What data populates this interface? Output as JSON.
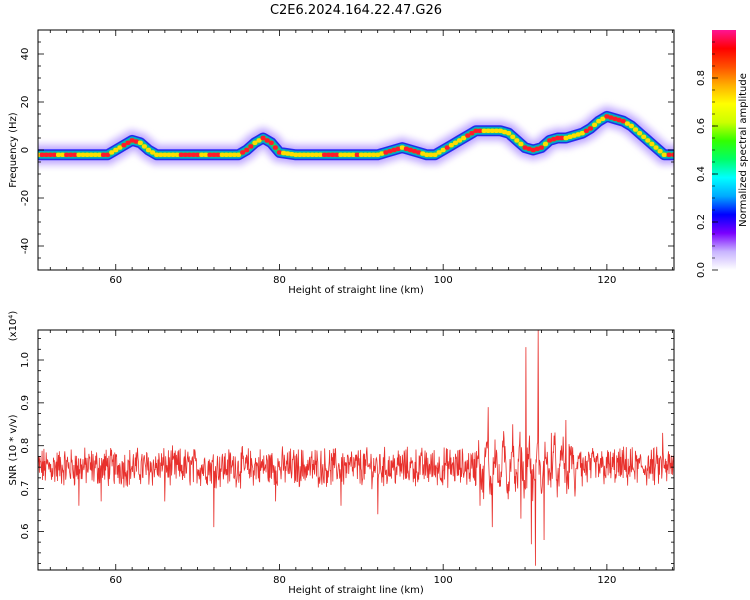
{
  "title": "C2E6.2024.164.22.47.G26",
  "chart_data": [
    {
      "type": "heatmap",
      "xlabel": "Height of straight line (km)",
      "ylabel": "Frequency (Hz)",
      "xlim": [
        50.5,
        128.2
      ],
      "ylim": [
        -50,
        50
      ],
      "xticks": [
        "60",
        "80",
        "100",
        "120"
      ],
      "yticks": [
        "-40",
        "-20",
        "0",
        "20",
        "40"
      ],
      "colorbar": {
        "label": "Normalized spectral amplitude",
        "range": [
          0.0,
          1.0
        ],
        "ticks": [
          "0.0",
          "0.2",
          "0.4",
          "0.6",
          "0.8"
        ],
        "colors": [
          "#ffffff",
          "#c8b4ff",
          "#7a00ff",
          "#0000ff",
          "#00aaff",
          "#00ffff",
          "#00ff66",
          "#33ff00",
          "#ccff00",
          "#ffff00",
          "#ffb000",
          "#ff5000",
          "#ff0000",
          "#ff1493"
        ]
      },
      "ridge": {
        "x": [
          50.5,
          59,
          60,
          61,
          62,
          63,
          64,
          65,
          75,
          76,
          77,
          78,
          79,
          80,
          82,
          90,
          91,
          92,
          93,
          94,
          95,
          96,
          97,
          98,
          99,
          100,
          101,
          102,
          103,
          104,
          105,
          107,
          108,
          109,
          110,
          111,
          112,
          113,
          114,
          115,
          116,
          117,
          118,
          119,
          120,
          121,
          122,
          123,
          124,
          125,
          126,
          127,
          128.2
        ],
        "y": [
          -2,
          -2,
          0,
          2,
          4,
          3,
          0,
          -2,
          -2,
          0,
          3,
          5,
          3,
          -1,
          -2,
          -2,
          -2,
          -2,
          -1,
          0,
          1,
          0,
          -1,
          -2,
          -2,
          0,
          2,
          4,
          6,
          8,
          8,
          8,
          7,
          4,
          1,
          0,
          1,
          4,
          5,
          5,
          6,
          7,
          9,
          12,
          14,
          13,
          12,
          10,
          7,
          4,
          1,
          -2,
          -2
        ]
      }
    },
    {
      "type": "line",
      "xlabel": "Height of straight line (km)",
      "ylabel": "SNR (10 * v/v)",
      "y_multiplier": "(x10⁴)",
      "xlim": [
        50.5,
        128.2
      ],
      "ylim": [
        0.51,
        1.07
      ],
      "xticks": [
        "60",
        "80",
        "100",
        "120"
      ],
      "yticks": [
        "0.6",
        "0.7",
        "0.8",
        "0.9",
        "1.0"
      ],
      "color": "#e8302c",
      "baseline": 0.75,
      "spikes": [
        {
          "x": 55.5,
          "y": 0.66
        },
        {
          "x": 58.2,
          "y": 0.67
        },
        {
          "x": 66.0,
          "y": 0.67
        },
        {
          "x": 72.0,
          "y": 0.61
        },
        {
          "x": 79.5,
          "y": 0.67
        },
        {
          "x": 87.5,
          "y": 0.66
        },
        {
          "x": 92.0,
          "y": 0.64
        },
        {
          "x": 104.5,
          "y": 0.66
        },
        {
          "x": 105.5,
          "y": 0.89
        },
        {
          "x": 106.0,
          "y": 0.61
        },
        {
          "x": 108.5,
          "y": 0.85
        },
        {
          "x": 109.5,
          "y": 0.63
        },
        {
          "x": 110.1,
          "y": 1.03
        },
        {
          "x": 110.8,
          "y": 0.57
        },
        {
          "x": 111.3,
          "y": 0.52
        },
        {
          "x": 111.6,
          "y": 1.07
        },
        {
          "x": 112.3,
          "y": 0.58
        },
        {
          "x": 113.2,
          "y": 0.83
        },
        {
          "x": 115.0,
          "y": 0.86
        },
        {
          "x": 126.8,
          "y": 0.83
        }
      ]
    }
  ]
}
